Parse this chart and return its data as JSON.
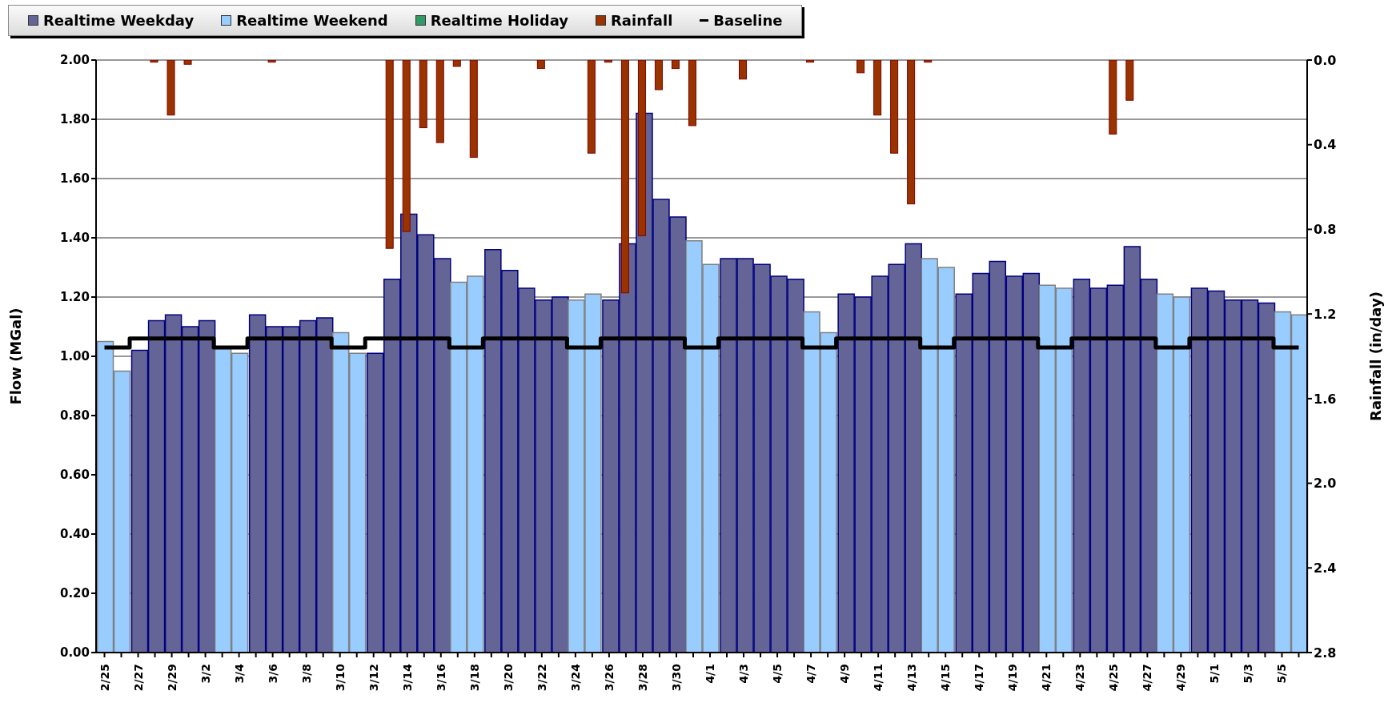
{
  "chart_data": {
    "type": "bar",
    "categories": [
      "2/25",
      null,
      "2/27",
      null,
      "2/29",
      null,
      "3/2",
      null,
      "3/4",
      null,
      "3/6",
      null,
      "3/8",
      null,
      "3/10",
      null,
      "3/12",
      null,
      "3/14",
      null,
      "3/16",
      null,
      "3/18",
      null,
      "3/20",
      null,
      "3/22",
      null,
      "3/24",
      null,
      "3/26",
      null,
      "3/28",
      null,
      "3/30",
      null,
      "4/1",
      null,
      "4/3",
      null,
      "4/5",
      null,
      "4/7",
      null,
      "4/9",
      null,
      "4/11",
      null,
      "4/13",
      null,
      "4/15",
      null,
      "4/17",
      null,
      "4/19",
      null,
      "4/21",
      null,
      "4/23",
      null,
      "4/25",
      null,
      "4/27",
      null,
      "4/29",
      null,
      "5/1",
      null,
      "5/3",
      null,
      "5/5",
      null
    ],
    "series": [
      {
        "name": "Realtime Weekday",
        "color": "#646496",
        "values": [
          null,
          null,
          1.02,
          1.12,
          1.14,
          1.1,
          1.12,
          null,
          null,
          1.14,
          1.1,
          1.1,
          1.12,
          1.13,
          null,
          null,
          1.01,
          1.26,
          1.48,
          1.41,
          1.33,
          null,
          null,
          1.36,
          1.29,
          1.23,
          1.19,
          1.2,
          null,
          null,
          1.19,
          1.38,
          1.82,
          1.53,
          1.47,
          null,
          null,
          1.33,
          1.33,
          1.31,
          1.27,
          1.26,
          null,
          null,
          1.21,
          1.2,
          1.27,
          1.31,
          1.38,
          null,
          null,
          1.21,
          1.28,
          1.32,
          1.27,
          1.28,
          null,
          null,
          1.26,
          1.23,
          1.24,
          1.37,
          1.26,
          null,
          null,
          1.23,
          1.22,
          1.19,
          1.19,
          1.18,
          null,
          null
        ]
      },
      {
        "name": "Realtime Weekend",
        "color": "#99ccff",
        "values": [
          1.05,
          0.95,
          null,
          null,
          null,
          null,
          null,
          1.03,
          1.01,
          null,
          null,
          null,
          null,
          null,
          1.08,
          1.01,
          null,
          null,
          null,
          null,
          null,
          1.25,
          1.27,
          null,
          null,
          null,
          null,
          null,
          1.19,
          1.21,
          null,
          null,
          null,
          null,
          null,
          1.39,
          1.31,
          null,
          null,
          null,
          null,
          null,
          1.15,
          1.08,
          null,
          null,
          null,
          null,
          null,
          1.33,
          1.3,
          null,
          null,
          null,
          null,
          null,
          1.24,
          1.23,
          null,
          null,
          null,
          null,
          null,
          1.21,
          1.2,
          null,
          null,
          null,
          null,
          null,
          1.15,
          1.14
        ]
      },
      {
        "name": "Realtime Holiday",
        "color": "#339966",
        "values": [
          null,
          null,
          null,
          null,
          null,
          null,
          null,
          null,
          null,
          null,
          null,
          null,
          null,
          null,
          null,
          null,
          null,
          null,
          null,
          null,
          null,
          null,
          null,
          null,
          null,
          null,
          null,
          null,
          null,
          null,
          null,
          null,
          null,
          null,
          null,
          null,
          null,
          null,
          null,
          null,
          null,
          null,
          null,
          null,
          null,
          null,
          null,
          null,
          null,
          null,
          null,
          null,
          null,
          null,
          null,
          null,
          null,
          null,
          null,
          null,
          null,
          null,
          null,
          null,
          null,
          null,
          null,
          null,
          null,
          null,
          null,
          null
        ]
      },
      {
        "name": "Rainfall",
        "color": "#993300",
        "axis": "y2",
        "values": [
          null,
          null,
          null,
          0.01,
          0.26,
          0.02,
          null,
          null,
          null,
          null,
          0.01,
          null,
          null,
          null,
          null,
          null,
          null,
          0.89,
          0.81,
          0.32,
          0.39,
          0.03,
          0.46,
          null,
          null,
          null,
          0.04,
          null,
          null,
          0.44,
          0.01,
          1.1,
          0.83,
          0.14,
          0.04,
          0.31,
          null,
          null,
          0.09,
          null,
          null,
          null,
          0.01,
          null,
          null,
          0.06,
          0.26,
          0.44,
          0.68,
          0.01,
          null,
          null,
          null,
          null,
          null,
          null,
          null,
          null,
          null,
          null,
          0.35,
          0.19,
          null,
          null,
          null,
          null,
          null,
          null,
          null,
          null,
          null,
          null
        ]
      },
      {
        "name": "Baseline",
        "type": "step",
        "color": "#000000",
        "values": [
          1.03,
          1.03,
          1.06,
          1.06,
          1.06,
          1.06,
          1.06,
          1.03,
          1.03,
          1.06,
          1.06,
          1.06,
          1.06,
          1.06,
          1.03,
          1.03,
          1.06,
          1.06,
          1.06,
          1.06,
          1.06,
          1.03,
          1.03,
          1.06,
          1.06,
          1.06,
          1.06,
          1.06,
          1.03,
          1.03,
          1.06,
          1.06,
          1.06,
          1.06,
          1.06,
          1.03,
          1.03,
          1.06,
          1.06,
          1.06,
          1.06,
          1.06,
          1.03,
          1.03,
          1.06,
          1.06,
          1.06,
          1.06,
          1.06,
          1.03,
          1.03,
          1.06,
          1.06,
          1.06,
          1.06,
          1.06,
          1.03,
          1.03,
          1.06,
          1.06,
          1.06,
          1.06,
          1.06,
          1.03,
          1.03,
          1.06,
          1.06,
          1.06,
          1.06,
          1.06,
          1.03,
          1.03
        ]
      }
    ],
    "ylabel": "Flow (MGal)",
    "y2label": "Rainfall (in/day)",
    "ylim": [
      0,
      2
    ],
    "yticks": [
      {
        "value": 0,
        "label": "0.00"
      },
      {
        "value": 0.2,
        "label": "0.20"
      },
      {
        "value": 0.4,
        "label": "0.40"
      },
      {
        "value": 0.6,
        "label": "0.60"
      },
      {
        "value": 0.8,
        "label": "0.80"
      },
      {
        "value": 1,
        "label": "1.00"
      },
      {
        "value": 1.2,
        "label": "1.20"
      },
      {
        "value": 1.4,
        "label": "1.40"
      },
      {
        "value": 1.6,
        "label": "1.60"
      },
      {
        "value": 1.8,
        "label": "1.80"
      },
      {
        "value": 2,
        "label": "2.00"
      }
    ],
    "y2lim": [
      2.8,
      0
    ],
    "y2ticks": [
      {
        "value": 0,
        "label": "0.0"
      },
      {
        "value": 0.4,
        "label": "0.4"
      },
      {
        "value": 0.8,
        "label": "0.8"
      },
      {
        "value": 1.2,
        "label": "1.2"
      },
      {
        "value": 1.6,
        "label": "1.6"
      },
      {
        "value": 2,
        "label": "2.0"
      },
      {
        "value": 2.4,
        "label": "2.4"
      },
      {
        "value": 2.8,
        "label": "2.8"
      }
    ],
    "grid": "y",
    "legend": "top left"
  }
}
